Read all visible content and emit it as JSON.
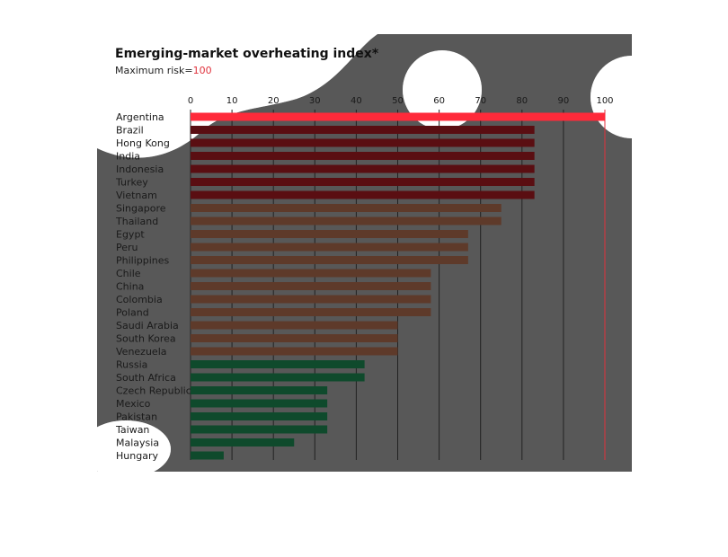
{
  "chart_data": {
    "type": "bar",
    "orientation": "horizontal",
    "title": "Emerging-market overheating index*",
    "subtitle_prefix": "Maximum risk=",
    "subtitle_value": "100",
    "xlim": [
      0,
      100
    ],
    "ticks": [
      0,
      10,
      20,
      30,
      40,
      50,
      60,
      70,
      80,
      90,
      100
    ],
    "grid": true,
    "categories": [
      "Argentina",
      "Brazil",
      "Hong Kong",
      "India",
      "Indonesia",
      "Turkey",
      "Vietnam",
      "Singapore",
      "Thailand",
      "Egypt",
      "Peru",
      "Philippines",
      "Chile",
      "China",
      "Colombia",
      "Poland",
      "Saudi Arabia",
      "South Korea",
      "Venezuela",
      "Russia",
      "South Africa",
      "Czech Republic",
      "Mexico",
      "Pakistan",
      "Taiwan",
      "Malaysia",
      "Hungary"
    ],
    "values": [
      100,
      83,
      83,
      83,
      83,
      83,
      83,
      75,
      75,
      67,
      67,
      67,
      58,
      58,
      58,
      58,
      50,
      50,
      50,
      42,
      42,
      33,
      33,
      33,
      33,
      25,
      8
    ],
    "colors": {
      "high": "#ff2a3a",
      "high_dark": "#5a0e12",
      "medium": "#5e3a2a",
      "low": "#0f4a2c",
      "accent": "#e0323c",
      "background": "#585858",
      "blob": "#bdbdbd"
    }
  }
}
